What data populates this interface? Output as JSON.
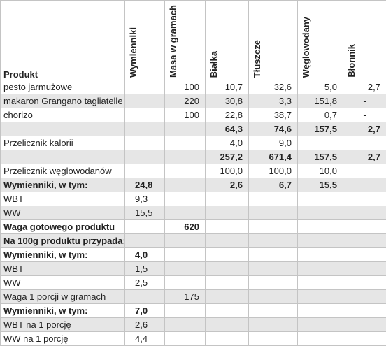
{
  "table": {
    "header": [
      "Produkt",
      "Wymienniki",
      "Masa w gramach",
      "Białka",
      "Tłuszcze",
      "Węglowodany",
      "Błonnik"
    ],
    "rows": [
      {
        "cells": [
          "pesto jarmużowe",
          null,
          "100",
          "10,7",
          "32,6",
          "5,0",
          "2,7"
        ]
      },
      {
        "cells": [
          "makaron Grangano tagliatelle",
          null,
          "220",
          "30,8",
          "3,3",
          "151,8",
          "-"
        ]
      },
      {
        "cells": [
          "chorizo",
          null,
          "100",
          "22,8",
          "38,7",
          "0,7",
          "-"
        ]
      },
      {
        "cells": [
          null,
          null,
          null,
          "64,3",
          "74,6",
          "157,5",
          "2,7"
        ],
        "bold": true
      },
      {
        "cells": [
          "Przelicznik kalorii",
          null,
          null,
          "4,0",
          "9,0",
          null,
          null
        ]
      },
      {
        "cells": [
          null,
          null,
          null,
          "257,2",
          "671,4",
          "157,5",
          "2,7"
        ],
        "bold": true
      },
      {
        "cells": [
          "Przelicznik węglowodanów",
          null,
          null,
          "100,0",
          "100,0",
          "10,0",
          null
        ]
      },
      {
        "cells": [
          "Wymienniki, w tym:",
          "24,8",
          null,
          "2,6",
          "6,7",
          "15,5",
          null
        ],
        "bold": true
      },
      {
        "cells": [
          "WBT",
          "9,3",
          null,
          null,
          null,
          null,
          null
        ]
      },
      {
        "cells": [
          "WW",
          "15,5",
          null,
          null,
          null,
          null,
          null
        ]
      },
      {
        "cells": [
          "Waga gotowego produktu",
          null,
          "620",
          null,
          null,
          null,
          null
        ],
        "bold": true
      },
      {
        "cells": [
          "Na 100g produktu przypada:",
          null,
          null,
          null,
          null,
          null,
          null
        ],
        "bold": true,
        "underline": true
      },
      {
        "cells": [
          "Wymienniki, w tym:",
          "4,0",
          null,
          null,
          null,
          null,
          null
        ],
        "bold": true
      },
      {
        "cells": [
          "WBT",
          "1,5",
          null,
          null,
          null,
          null,
          null
        ]
      },
      {
        "cells": [
          "WW",
          "2,5",
          null,
          null,
          null,
          null,
          null
        ]
      },
      {
        "cells": [
          "Waga 1 porcji w gramach",
          null,
          "175",
          null,
          null,
          null,
          null
        ]
      },
      {
        "cells": [
          "Wymienniki, w tym:",
          "7,0",
          null,
          null,
          null,
          null,
          null
        ],
        "bold": true
      },
      {
        "cells": [
          "WBT na 1 porcję",
          "2,6",
          null,
          null,
          null,
          null,
          null
        ]
      },
      {
        "cells": [
          "WW na 1 porcję",
          "4,4",
          null,
          null,
          null,
          null,
          null
        ]
      }
    ]
  }
}
